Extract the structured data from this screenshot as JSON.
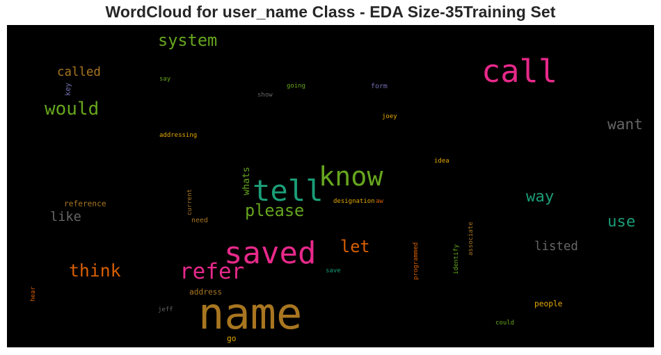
{
  "chart_data": {
    "type": "wordcloud",
    "title": "WordCloud for user_name Class - EDA Size-35Training Set",
    "background": "#000000",
    "words": [
      {
        "text": "name",
        "weight": 1.0,
        "color": "#a87620",
        "orientation": "horizontal"
      },
      {
        "text": "saved",
        "weight": 0.71,
        "color": "#e7298a",
        "orientation": "horizontal"
      },
      {
        "text": "call",
        "weight": 0.73,
        "color": "#e7298a",
        "orientation": "horizontal"
      },
      {
        "text": "tell",
        "weight": 0.68,
        "color": "#1b9e77",
        "orientation": "horizontal"
      },
      {
        "text": "know",
        "weight": 0.62,
        "color": "#66a61e",
        "orientation": "horizontal"
      },
      {
        "text": "refer",
        "weight": 0.5,
        "color": "#e7298a",
        "orientation": "horizontal"
      },
      {
        "text": "would",
        "weight": 0.42,
        "color": "#66a61e",
        "orientation": "horizontal"
      },
      {
        "text": "think",
        "weight": 0.4,
        "color": "#d95f02",
        "orientation": "horizontal"
      },
      {
        "text": "let",
        "weight": 0.38,
        "color": "#d95f02",
        "orientation": "horizontal"
      },
      {
        "text": "system",
        "weight": 0.38,
        "color": "#66a61e",
        "orientation": "horizontal"
      },
      {
        "text": "please",
        "weight": 0.38,
        "color": "#66a61e",
        "orientation": "horizontal"
      },
      {
        "text": "way",
        "weight": 0.36,
        "color": "#1b9e77",
        "orientation": "horizontal"
      },
      {
        "text": "use",
        "weight": 0.36,
        "color": "#1b9e77",
        "orientation": "horizontal"
      },
      {
        "text": "want",
        "weight": 0.34,
        "color": "#666666",
        "orientation": "horizontal"
      },
      {
        "text": "like",
        "weight": 0.3,
        "color": "#666666",
        "orientation": "horizontal"
      },
      {
        "text": "listed",
        "weight": 0.28,
        "color": "#666666",
        "orientation": "horizontal"
      },
      {
        "text": "called",
        "weight": 0.28,
        "color": "#a87620",
        "orientation": "horizontal"
      },
      {
        "text": "whats",
        "weight": 0.22,
        "color": "#66a61e",
        "orientation": "vertical"
      },
      {
        "text": "reference",
        "weight": 0.18,
        "color": "#a87620",
        "orientation": "horizontal"
      },
      {
        "text": "address",
        "weight": 0.18,
        "color": "#a87620",
        "orientation": "horizontal"
      },
      {
        "text": "people",
        "weight": 0.18,
        "color": "#e6ab02",
        "orientation": "horizontal"
      },
      {
        "text": "go",
        "weight": 0.18,
        "color": "#e6ab02",
        "orientation": "horizontal"
      },
      {
        "text": "need",
        "weight": 0.16,
        "color": "#a87620",
        "orientation": "horizontal"
      },
      {
        "text": "key",
        "weight": 0.17,
        "color": "#7570b3",
        "orientation": "vertical"
      },
      {
        "text": "form",
        "weight": 0.16,
        "color": "#7570b3",
        "orientation": "horizontal"
      },
      {
        "text": "designation",
        "weight": 0.13,
        "color": "#e6ab02",
        "orientation": "horizontal"
      },
      {
        "text": "aw",
        "weight": 0.13,
        "color": "#d95f02",
        "orientation": "horizontal"
      },
      {
        "text": "current",
        "weight": 0.12,
        "color": "#a87620",
        "orientation": "vertical"
      },
      {
        "text": "programmed",
        "weight": 0.12,
        "color": "#d95f02",
        "orientation": "vertical"
      },
      {
        "text": "identify",
        "weight": 0.12,
        "color": "#66a61e",
        "orientation": "vertical"
      },
      {
        "text": "associate",
        "weight": 0.12,
        "color": "#a87620",
        "orientation": "vertical"
      },
      {
        "text": "hear",
        "weight": 0.11,
        "color": "#d95f02",
        "orientation": "vertical"
      },
      {
        "text": "say",
        "weight": 0.11,
        "color": "#66a61e",
        "orientation": "horizontal"
      },
      {
        "text": "going",
        "weight": 0.11,
        "color": "#66a61e",
        "orientation": "horizontal"
      },
      {
        "text": "show",
        "weight": 0.11,
        "color": "#666666",
        "orientation": "horizontal"
      },
      {
        "text": "joey",
        "weight": 0.11,
        "color": "#e6ab02",
        "orientation": "horizontal"
      },
      {
        "text": "addressing",
        "weight": 0.11,
        "color": "#e6ab02",
        "orientation": "horizontal"
      },
      {
        "text": "idea",
        "weight": 0.11,
        "color": "#e6ab02",
        "orientation": "horizontal"
      },
      {
        "text": "save",
        "weight": 0.11,
        "color": "#1b9e77",
        "orientation": "horizontal"
      },
      {
        "text": "jeff",
        "weight": 0.11,
        "color": "#666666",
        "orientation": "horizontal"
      },
      {
        "text": "could",
        "weight": 0.11,
        "color": "#66a61e",
        "orientation": "horizontal"
      }
    ]
  }
}
